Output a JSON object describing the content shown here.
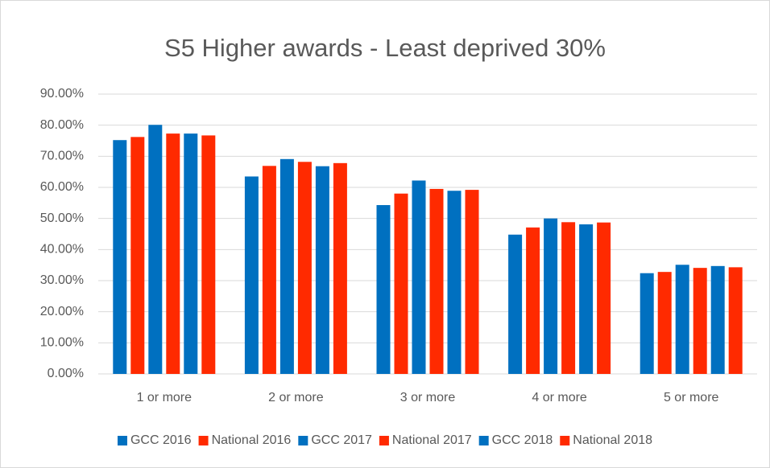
{
  "chart_data": {
    "type": "bar",
    "title": "S5 Higher awards - Least deprived 30%",
    "categories": [
      "1 or more",
      "2 or more",
      "3 or more",
      "4 or more",
      "5 or more"
    ],
    "series": [
      {
        "name": "GCC 2016",
        "color": "#0070c0",
        "values": [
          75.2,
          63.5,
          54.3,
          44.8,
          32.4
        ]
      },
      {
        "name": "National 2016",
        "color": "#ff2a00",
        "values": [
          76.2,
          66.9,
          58.0,
          47.1,
          32.8
        ]
      },
      {
        "name": "GCC 2017",
        "color": "#0070c0",
        "values": [
          80.1,
          69.1,
          62.2,
          50.0,
          35.1
        ]
      },
      {
        "name": "National 2017",
        "color": "#ff2a00",
        "values": [
          77.3,
          68.2,
          59.5,
          48.8,
          34.1
        ]
      },
      {
        "name": "GCC 2018",
        "color": "#0070c0",
        "values": [
          77.3,
          66.8,
          58.9,
          48.1,
          34.7
        ]
      },
      {
        "name": "National 2018",
        "color": "#ff2a00",
        "values": [
          76.7,
          67.8,
          59.2,
          48.7,
          34.3
        ]
      }
    ],
    "ylim": [
      0,
      90
    ],
    "yticks": [
      {
        "value": 0,
        "label": "0.00%"
      },
      {
        "value": 10,
        "label": "10.00%"
      },
      {
        "value": 20,
        "label": "20.00%"
      },
      {
        "value": 30,
        "label": "30.00%"
      },
      {
        "value": 40,
        "label": "40.00%"
      },
      {
        "value": 50,
        "label": "50.00%"
      },
      {
        "value": 60,
        "label": "60.00%"
      },
      {
        "value": 70,
        "label": "70.00%"
      },
      {
        "value": 80,
        "label": "80.00%"
      },
      {
        "value": 90,
        "label": "90.00%"
      }
    ],
    "grid": true,
    "legend": "bottom"
  }
}
